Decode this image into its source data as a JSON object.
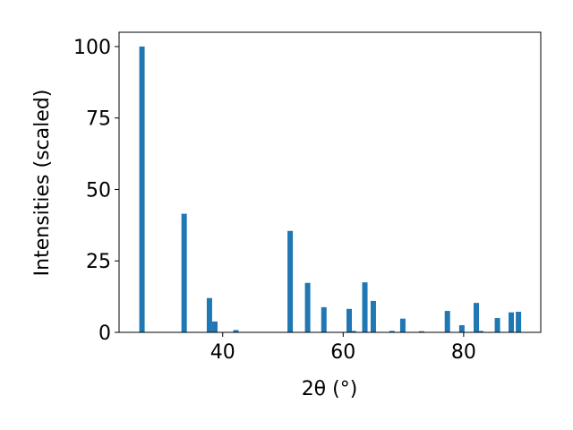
{
  "chart_data": {
    "type": "bar",
    "xlabel": "2θ (°)",
    "ylabel": "Intensities (scaled)",
    "color": "#1f77b4",
    "x": [
      26.6,
      33.6,
      37.8,
      38.7,
      42.2,
      51.2,
      54.1,
      56.8,
      61.0,
      61.7,
      63.6,
      65.0,
      68.1,
      69.9,
      73.0,
      77.3,
      79.7,
      82.1,
      82.8,
      85.6,
      87.9,
      89.1
    ],
    "values": [
      100,
      41.5,
      12,
      3.8,
      0.8,
      35.5,
      17.3,
      8.8,
      8.2,
      0.5,
      17.5,
      11,
      0.5,
      4.8,
      0.4,
      7.5,
      2.5,
      10.3,
      0.5,
      5,
      7,
      7.2
    ],
    "xlim": [
      22.8,
      92.8
    ],
    "ylim": [
      0,
      105
    ],
    "xticks": [
      40,
      60,
      80
    ],
    "yticks": [
      0,
      25,
      50,
      75,
      100
    ]
  }
}
